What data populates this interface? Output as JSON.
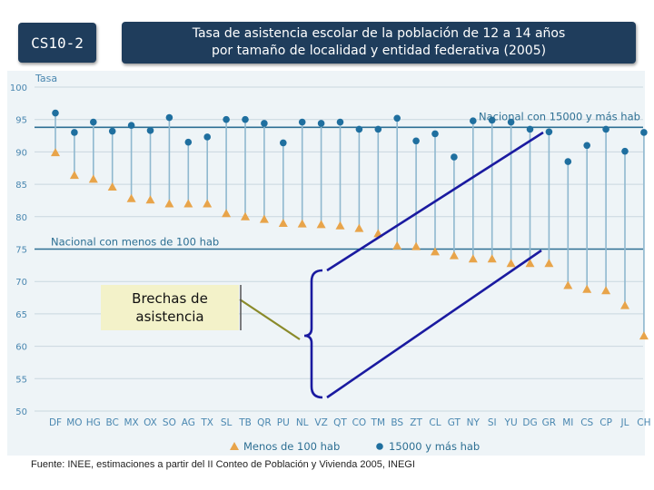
{
  "code": "CS10-2",
  "title_line1": "Tasa de asistencia escolar de la población de 12 a 14 años",
  "title_line2": "por tamaño de localidad y entidad federativa (2005)",
  "callout": "Brechas de asistencia",
  "source": "Fuente: INEE, estimaciones a partir del II Conteo de Población y Vivienda 2005, INEGI",
  "colors": {
    "small": "#e8a44a",
    "large": "#1f6f9f",
    "stem": "#8fb8cf",
    "refline": "#2d6f93",
    "bracket": "#1a1aa0",
    "connector": "#8a8a2a"
  },
  "chart_data": {
    "type": "dot-range",
    "ylabel": "Tasa",
    "ylim": [
      50,
      100
    ],
    "yticks": [
      50,
      55,
      60,
      65,
      70,
      75,
      80,
      85,
      90,
      95,
      100
    ],
    "categories": [
      "DF",
      "MO",
      "HG",
      "BC",
      "MX",
      "OX",
      "SO",
      "AG",
      "TX",
      "SL",
      "TB",
      "QR",
      "PU",
      "NL",
      "VZ",
      "QT",
      "CO",
      "TM",
      "BS",
      "ZT",
      "CL",
      "GT",
      "NY",
      "SI",
      "YU",
      "DG",
      "GR",
      "MI",
      "CS",
      "CP",
      "JL",
      "CH"
    ],
    "series": [
      {
        "name": "Menos de 100 hab",
        "marker": "triangle",
        "values": [
          89.9,
          86.4,
          85.8,
          84.6,
          82.8,
          82.6,
          82.0,
          82.0,
          82.0,
          80.5,
          80.0,
          79.6,
          79.0,
          78.9,
          78.8,
          78.6,
          78.2,
          77.4,
          75.5,
          75.4,
          74.6,
          74.0,
          73.5,
          73.5,
          72.8,
          72.8,
          72.8,
          69.4,
          68.8,
          68.6,
          66.3,
          61.6
        ]
      },
      {
        "name": "15000 y más hab",
        "marker": "circle",
        "values": [
          96.0,
          93.0,
          94.6,
          93.2,
          94.1,
          93.3,
          95.3,
          91.5,
          92.3,
          95.0,
          95.0,
          94.4,
          91.4,
          94.6,
          94.4,
          94.6,
          93.5,
          93.5,
          95.2,
          91.7,
          92.8,
          89.2,
          94.8,
          94.9,
          94.6,
          93.5,
          93.1,
          88.5,
          91.0,
          93.5,
          90.1,
          93.0
        ]
      }
    ],
    "reference_lines": [
      {
        "label": "Nacional con 15000 y más hab",
        "value": 93.8
      },
      {
        "label": "Nacional con menos de 100 hab",
        "value": 75.0
      }
    ],
    "legend": [
      "Menos de 100 hab",
      "15000 y más hab"
    ]
  }
}
